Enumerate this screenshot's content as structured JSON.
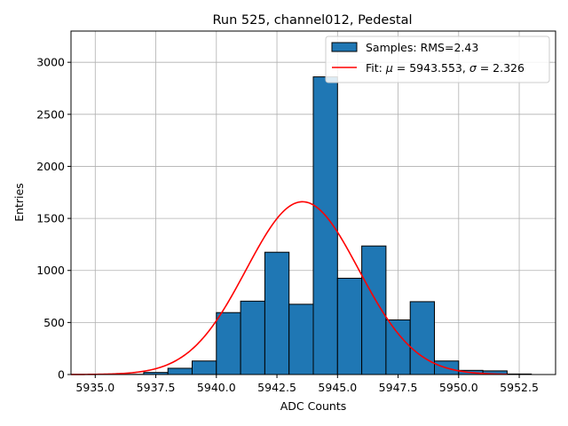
{
  "chart_data": {
    "type": "bar",
    "title": "Run 525, channel012, Pedestal",
    "xlabel": "ADC Counts",
    "ylabel": "Entries",
    "xlim": [
      5934.0,
      5954.0
    ],
    "ylim": [
      0,
      3300
    ],
    "grid": true,
    "legend_position": "top-right",
    "x_ticks": [
      5935.0,
      5937.5,
      5940.0,
      5942.5,
      5945.0,
      5947.5,
      5950.0,
      5952.5
    ],
    "x_tick_labels": [
      "5935.0",
      "5937.5",
      "5940.0",
      "5942.5",
      "5945.0",
      "5947.5",
      "5950.0",
      "5952.5"
    ],
    "y_ticks": [
      0,
      500,
      1000,
      1500,
      2000,
      2500,
      3000
    ],
    "y_tick_labels": [
      "0",
      "500",
      "1000",
      "1500",
      "2000",
      "2500",
      "3000"
    ],
    "bin_edges": [
      5935,
      5936,
      5937,
      5938,
      5939,
      5940,
      5941,
      5942,
      5943,
      5944,
      5945,
      5946,
      5947,
      5948,
      5949,
      5950,
      5951,
      5952,
      5953
    ],
    "series": [
      {
        "name": "Samples: RMS=2.43",
        "kind": "histogram",
        "color": "#1f77b4",
        "values": [
          1,
          2,
          20,
          60,
          130,
          595,
          705,
          1175,
          675,
          2860,
          925,
          1235,
          525,
          700,
          130,
          40,
          35,
          5
        ]
      },
      {
        "name": "Fit: μ = 5943.553, σ = 2.326",
        "kind": "gaussian",
        "color": "#ff0000",
        "mu": 5943.553,
        "sigma": 2.326,
        "amplitude": 1660,
        "x_range": [
          5934,
          5952
        ]
      }
    ],
    "legend_entries": [
      {
        "prefix": "Samples: RMS=2.43"
      },
      {
        "prefix": "Fit: ",
        "mu_symbol": "μ",
        "mid": " = 5943.553, ",
        "sigma_symbol": "σ",
        "suffix": " = 2.326"
      }
    ]
  }
}
